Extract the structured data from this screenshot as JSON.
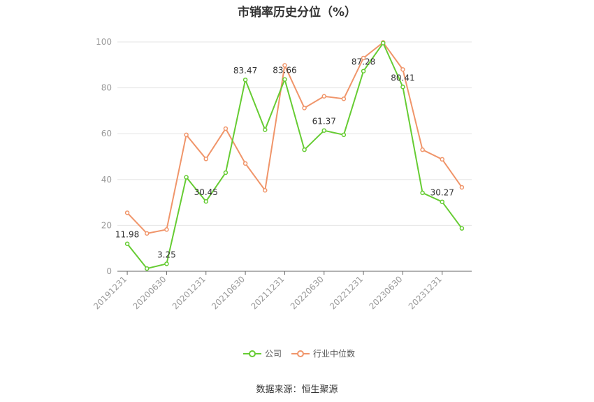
{
  "chart_data": {
    "type": "line",
    "title": "市销率历史分位（%）",
    "x": [
      "20191231",
      "20200331",
      "20200630",
      "20200930",
      "20201231",
      "20210331",
      "20210630",
      "20210930",
      "20211231",
      "20220331",
      "20220630",
      "20220930",
      "20221231",
      "20230331",
      "20230630",
      "20230930",
      "20231231",
      "20240331"
    ],
    "x_tick_labels": [
      "20191231",
      "20200630",
      "20201231",
      "20210630",
      "20211231",
      "20220630",
      "20221231",
      "20230630",
      "20231231"
    ],
    "ylim": [
      0,
      100
    ],
    "y_ticks": [
      0,
      20,
      40,
      60,
      80,
      100
    ],
    "grid": true,
    "legend_position": "bottom",
    "series": [
      {
        "name": "公司",
        "color": "#66cc33",
        "values": [
          11.98,
          1.2,
          3.25,
          41,
          30.45,
          43,
          83.47,
          61.7,
          83.66,
          53,
          61.37,
          59.5,
          87.28,
          99.5,
          80.41,
          34.2,
          30.27,
          18.7
        ]
      },
      {
        "name": "行业中位数",
        "color": "#f0956a",
        "values": [
          25.5,
          16.5,
          18.2,
          59.5,
          49,
          62.2,
          47,
          35.3,
          89.8,
          71.2,
          76.3,
          75.2,
          93,
          99.8,
          88,
          53,
          48.8,
          36.6
        ]
      }
    ],
    "data_labels": [
      {
        "series": 0,
        "index": 0,
        "text": "11.98"
      },
      {
        "series": 0,
        "index": 2,
        "text": "3.25"
      },
      {
        "series": 0,
        "index": 4,
        "text": "30.45"
      },
      {
        "series": 0,
        "index": 6,
        "text": "83.47"
      },
      {
        "series": 0,
        "index": 8,
        "text": "83.66"
      },
      {
        "series": 0,
        "index": 10,
        "text": "61.37"
      },
      {
        "series": 0,
        "index": 12,
        "text": "87.28"
      },
      {
        "series": 0,
        "index": 14,
        "text": "80.41"
      },
      {
        "series": 0,
        "index": 16,
        "text": "30.27"
      }
    ]
  },
  "legend": {
    "company": "公司",
    "industry": "行业中位数"
  },
  "source": "数据来源：恒生聚源"
}
